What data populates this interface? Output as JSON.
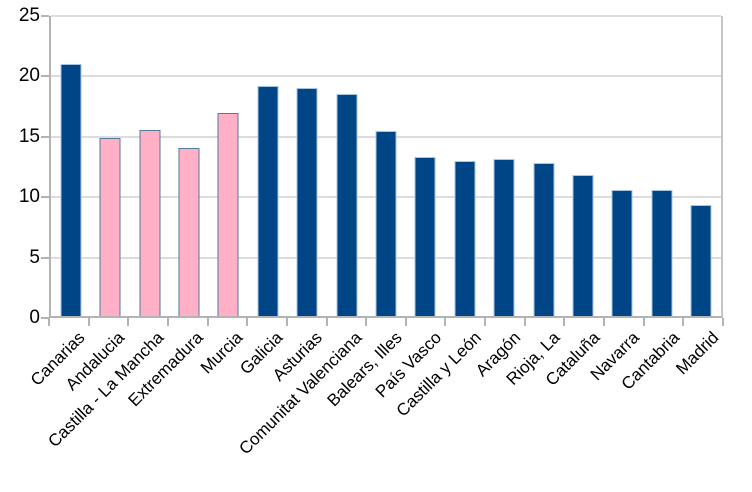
{
  "chart_data": {
    "type": "bar",
    "title": "",
    "xlabel": "",
    "ylabel": "",
    "categories": [
      "Canarias",
      "Andalucia",
      "Castilla - La Mancha",
      "Extremadura",
      "Murcia",
      "Galicia",
      "Asturias",
      "Comunitat Valenciana",
      "Balears, Illes",
      "País Vasco",
      "Castilla y León",
      "Aragón",
      "Rioja, La",
      "Cataluña",
      "Navarra",
      "Cantabria",
      "Madrid"
    ],
    "values": [
      20.9,
      14.7,
      15.4,
      13.9,
      16.8,
      19.0,
      18.9,
      18.4,
      15.3,
      13.2,
      12.8,
      13.0,
      12.7,
      11.7,
      10.4,
      10.4,
      9.2
    ],
    "highlighted_indices": [
      1,
      2,
      3,
      4
    ],
    "ylim": [
      0,
      25
    ],
    "yticks": [
      0,
      5,
      10,
      15,
      20,
      25
    ],
    "ytick_labels": [
      "0",
      "5",
      "10",
      "15",
      "20",
      "25"
    ],
    "grid": true,
    "legend": "none",
    "colors": {
      "bar_default_fill": "#004586",
      "bar_default_border": "#a8c4e4",
      "bar_highlight_fill": "#ffb0c6",
      "bar_highlight_border": "#527a9c",
      "gridline": "#dcdcdc",
      "axis_line": "#b3b3b3",
      "text": "#000000"
    }
  },
  "layout_note": "single-series column chart, no title, no legend, rotated category labels"
}
